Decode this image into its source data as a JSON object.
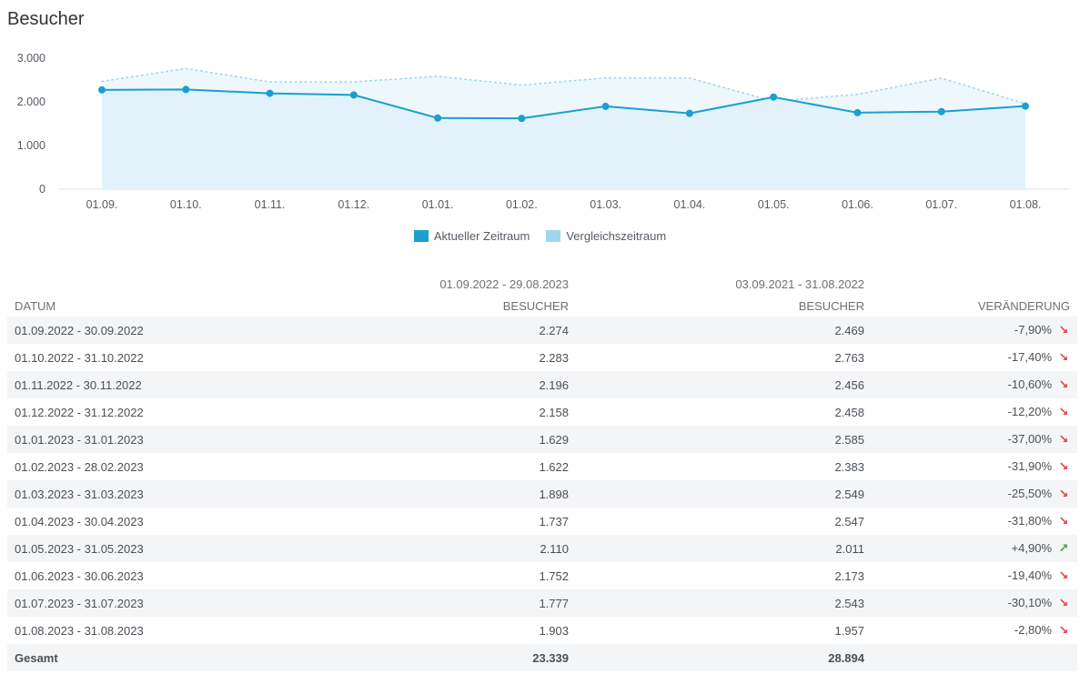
{
  "page": {
    "title": "Besucher"
  },
  "chart_data": {
    "type": "line",
    "x": [
      "01.09.",
      "01.10.",
      "01.11.",
      "01.12.",
      "01.01.",
      "01.02.",
      "01.03.",
      "01.04.",
      "01.05.",
      "01.06.",
      "01.07.",
      "01.08."
    ],
    "series": [
      {
        "name": "Aktueller Zeitraum",
        "values": [
          2274,
          2283,
          2196,
          2158,
          1629,
          1622,
          1898,
          1737,
          2110,
          1752,
          1777,
          1903
        ],
        "color": "#1a9fd0",
        "style": "solid-area-markers"
      },
      {
        "name": "Vergleichszeitraum",
        "values": [
          2469,
          2763,
          2456,
          2458,
          2585,
          2383,
          2549,
          2547,
          2011,
          2173,
          2543,
          1957
        ],
        "color": "#9fd8ec",
        "style": "dotted-area"
      }
    ],
    "yticks": [
      "3.000",
      "2.000",
      "1.000",
      "0"
    ],
    "ytick_values": [
      3000,
      2000,
      1000,
      0
    ],
    "ylim": [
      0,
      3000
    ],
    "legend_placement": "bottom-center"
  },
  "legend": {
    "current": "Aktueller Zeitraum",
    "compare": "Vergleichszeitraum"
  },
  "table": {
    "period_current": "01.09.2022 - 29.08.2023",
    "period_compare": "03.09.2021 - 31.08.2022",
    "headers": {
      "date": "DATUM",
      "current": "BESUCHER",
      "compare": "BESUCHER",
      "change": "VERÄNDERUNG"
    },
    "rows": [
      {
        "date": "01.09.2022 - 30.09.2022",
        "current": "2.274",
        "compare": "2.469",
        "change": "-7,90%",
        "dir": "down"
      },
      {
        "date": "01.10.2022 - 31.10.2022",
        "current": "2.283",
        "compare": "2.763",
        "change": "-17,40%",
        "dir": "down"
      },
      {
        "date": "01.11.2022 - 30.11.2022",
        "current": "2.196",
        "compare": "2.456",
        "change": "-10,60%",
        "dir": "down"
      },
      {
        "date": "01.12.2022 - 31.12.2022",
        "current": "2.158",
        "compare": "2.458",
        "change": "-12,20%",
        "dir": "down"
      },
      {
        "date": "01.01.2023 - 31.01.2023",
        "current": "1.629",
        "compare": "2.585",
        "change": "-37,00%",
        "dir": "down"
      },
      {
        "date": "01.02.2023 - 28.02.2023",
        "current": "1.622",
        "compare": "2.383",
        "change": "-31,90%",
        "dir": "down"
      },
      {
        "date": "01.03.2023 - 31.03.2023",
        "current": "1.898",
        "compare": "2.549",
        "change": "-25,50%",
        "dir": "down"
      },
      {
        "date": "01.04.2023 - 30.04.2023",
        "current": "1.737",
        "compare": "2.547",
        "change": "-31,80%",
        "dir": "down"
      },
      {
        "date": "01.05.2023 - 31.05.2023",
        "current": "2.110",
        "compare": "2.011",
        "change": "+4,90%",
        "dir": "up"
      },
      {
        "date": "01.06.2023 - 30.06.2023",
        "current": "1.752",
        "compare": "2.173",
        "change": "-19,40%",
        "dir": "down"
      },
      {
        "date": "01.07.2023 - 31.07.2023",
        "current": "1.777",
        "compare": "2.543",
        "change": "-30,10%",
        "dir": "down"
      },
      {
        "date": "01.08.2023 - 31.08.2023",
        "current": "1.903",
        "compare": "1.957",
        "change": "-2,80%",
        "dir": "down"
      }
    ],
    "total": {
      "label": "Gesamt",
      "current": "23.339",
      "compare": "28.894"
    },
    "icons": {
      "down": "arrow-down-right-icon",
      "up": "arrow-up-right-icon"
    },
    "colors": {
      "down": "#e0413a",
      "up": "#3aa63a"
    }
  }
}
